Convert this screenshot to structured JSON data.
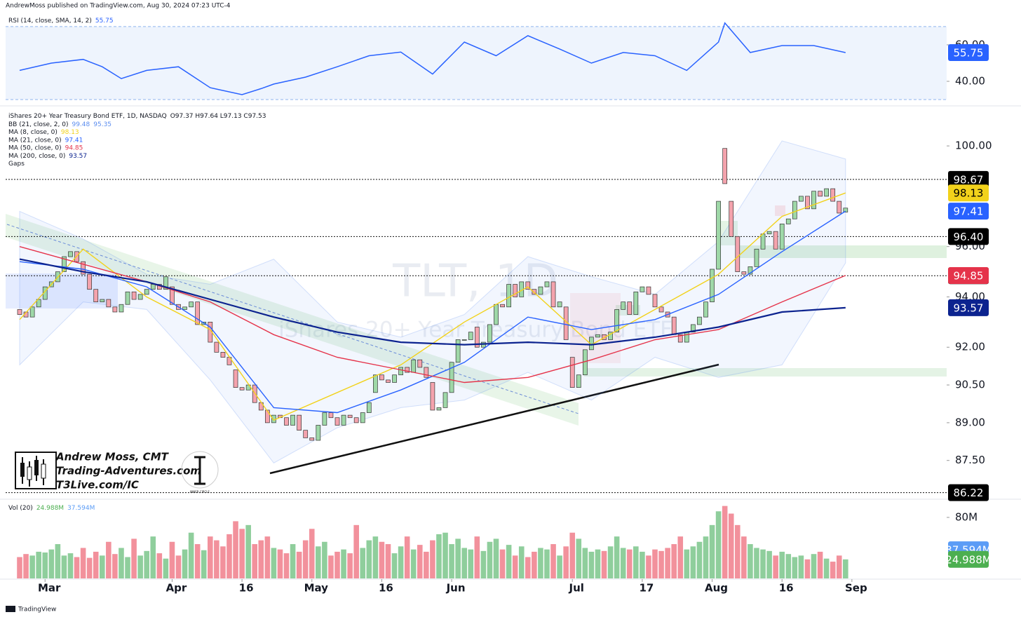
{
  "header": "AndrewMoss published on TradingView.com, Aug 30, 2024 07:23 UTC-4",
  "branding": {
    "name": "Andrew Moss, CMT",
    "site": "Trading-Adventures.com",
    "link": "T3Live.com/IC",
    "badge": "INNER CIRCLE"
  },
  "footer": "TradingView",
  "chart_data": [
    {
      "type": "line",
      "legend": "RSI (14, close, SMA, 14, 2)",
      "color": "#2962ff",
      "x": [
        0,
        5,
        10,
        13,
        16,
        20,
        25,
        30,
        35,
        38,
        40,
        45,
        50,
        55,
        60,
        65,
        70,
        75,
        80,
        85,
        90,
        95,
        100,
        105,
        110,
        111,
        115,
        120,
        125,
        130
      ],
      "values": [
        46,
        50,
        52,
        48,
        41.5,
        46,
        48,
        36.5,
        32.7,
        36,
        38.5,
        42.3,
        48,
        54,
        56,
        44,
        61.5,
        54,
        65,
        57.7,
        50,
        55.8,
        54,
        46,
        61.5,
        72,
        55.8,
        59.6,
        59.6,
        55.75
      ],
      "ylim": [
        27.7,
        73.8
      ],
      "yticks": [
        {
          "value": 60,
          "label": "60.00"
        },
        {
          "value": 40,
          "label": "40.00"
        }
      ],
      "bands": [
        30,
        70
      ]
    },
    {
      "type": "candlestick",
      "title": "TLT, 1D",
      "subtitle": "iShares 20+ Year Treasury Bond ETF",
      "legend": "iShares 20+ Year Treasury Bond ETF, 1D, NASDAQ",
      "ohlc_text": "O97.37 H97.64 L97.13 C97.53",
      "gaps_legend": "Gaps",
      "open": [
        93.5,
        93.4,
        93.2,
        93.6,
        93.9,
        94.4,
        94.6,
        95.0,
        95.6,
        95.8,
        95.4,
        94.9,
        94.3,
        93.8,
        93.9,
        93.6,
        93.4,
        93.7,
        94.2,
        93.9,
        94.1,
        94.3,
        94.5,
        94.3,
        94.4,
        93.7,
        93.5,
        93.6,
        93.8,
        92.9,
        93.0,
        92.2,
        91.8,
        91.6,
        91.1,
        90.4,
        90.3,
        90.5,
        89.8,
        89.5,
        89.0,
        89.3,
        89.2,
        88.9,
        89.3,
        88.7,
        88.4,
        88.3,
        88.9,
        89.4,
        89.2,
        88.9,
        89.3,
        89.2,
        89.0,
        89.4,
        90.2,
        90.9,
        90.7,
        90.6,
        90.9,
        91.2,
        91.0,
        91.5,
        91.2,
        90.6,
        89.5,
        89.6,
        90.2,
        91.4,
        92.3,
        92.3,
        92.8,
        92.0,
        92.2,
        92.9,
        93.7,
        93.6,
        94.5,
        94.0,
        94.6,
        94.3,
        94.1,
        94.4,
        94.6,
        93.6,
        93.6,
        91.6,
        90.4,
        90.9,
        91.9,
        92.4,
        92.5,
        92.3,
        92.6,
        93.5,
        93.8,
        93.3,
        94.2,
        94.4,
        94.1,
        93.6,
        93.4,
        93.2,
        92.5,
        92.2,
        92.6,
        92.9,
        93.2,
        93.8,
        95.1,
        99.9,
        97.8,
        96.4,
        95.0,
        94.9,
        95.2,
        95.9,
        96.5,
        96.6,
        95.9,
        96.9,
        97.1,
        97.8,
        98.0,
        97.5,
        98.2,
        98.0,
        98.3,
        97.8,
        97.37
      ],
      "close": [
        93.3,
        93.2,
        93.6,
        93.9,
        94.4,
        94.6,
        95.0,
        95.6,
        95.8,
        95.4,
        94.9,
        94.3,
        93.8,
        93.9,
        93.6,
        93.4,
        93.7,
        94.2,
        93.9,
        94.1,
        94.3,
        94.5,
        94.3,
        94.8,
        93.7,
        93.5,
        93.6,
        93.8,
        92.9,
        93.0,
        92.2,
        91.8,
        91.6,
        91.3,
        90.4,
        90.3,
        90.5,
        89.8,
        89.5,
        89.0,
        89.3,
        89.2,
        88.9,
        89.3,
        88.7,
        88.4,
        88.3,
        88.9,
        89.4,
        89.2,
        88.9,
        89.3,
        89.2,
        89.0,
        89.4,
        89.8,
        90.9,
        90.7,
        90.6,
        90.9,
        91.2,
        91.0,
        91.5,
        91.2,
        90.8,
        89.5,
        89.6,
        90.2,
        91.4,
        92.3,
        92.3,
        92.6,
        92.0,
        92.2,
        92.9,
        93.7,
        93.6,
        94.5,
        94.0,
        94.6,
        94.3,
        94.1,
        94.4,
        94.6,
        93.6,
        93.8,
        92.3,
        90.4,
        90.9,
        91.9,
        92.4,
        92.5,
        92.3,
        92.6,
        93.5,
        93.8,
        93.3,
        94.2,
        94.4,
        94.1,
        93.6,
        93.4,
        93.2,
        92.5,
        92.2,
        92.6,
        92.9,
        93.2,
        93.8,
        95.1,
        97.8,
        98.5,
        96.4,
        95.0,
        94.9,
        95.2,
        95.9,
        96.5,
        96.6,
        95.9,
        96.9,
        97.1,
        97.8,
        98.0,
        97.5,
        98.2,
        98.0,
        98.3,
        97.8,
        97.33,
        97.53
      ],
      "ylim": [
        85.96,
        101.48
      ],
      "yticks": [
        {
          "value": 87.5,
          "label": "87.50"
        },
        {
          "value": 89,
          "label": "89.00"
        },
        {
          "value": 90.5,
          "label": "90.50"
        },
        {
          "value": 92,
          "label": "92.00"
        },
        {
          "value": 94,
          "label": "94.00"
        },
        {
          "value": 96,
          "label": "96.00"
        },
        {
          "value": 100,
          "label": "100.00"
        }
      ],
      "xticks": [
        {
          "value": 4,
          "label": "Mar"
        },
        {
          "value": 24,
          "label": "Apr"
        },
        {
          "value": 35,
          "label": "16"
        },
        {
          "value": 46,
          "label": "May"
        },
        {
          "value": 57,
          "label": "16"
        },
        {
          "value": 68,
          "label": "Jun"
        },
        {
          "value": 87,
          "label": "Jul"
        },
        {
          "value": 98,
          "label": "17"
        },
        {
          "value": 109,
          "label": "Aug"
        },
        {
          "value": 120,
          "label": "16"
        },
        {
          "value": 131,
          "label": "Sep"
        }
      ],
      "line_x": [
        0,
        10,
        20,
        30,
        40,
        50,
        60,
        70,
        80,
        90,
        100,
        110,
        120,
        130
      ],
      "bb": {
        "name": "BB (21, close, 2, 0)",
        "color": "#5b8def",
        "upper": [
          97.4,
          96.3,
          94.9,
          94.5,
          95.5,
          93.0,
          92.4,
          93.3,
          95.6,
          94.8,
          94.1,
          96.2,
          100.2,
          99.48
        ],
        "lower": [
          91.3,
          93.8,
          93.5,
          90.7,
          87.4,
          88.8,
          89.6,
          89.9,
          91.0,
          89.9,
          91.6,
          90.8,
          91.3,
          95.35
        ]
      },
      "series": [
        {
          "name": "MA (8, close, 0)",
          "color": "#f2d21b",
          "text_color": "#000000",
          "values": [
            93.1,
            95.9,
            94.0,
            92.7,
            89.1,
            90.2,
            91.3,
            93.0,
            94.4,
            92.1,
            93.5,
            94.9,
            97.2,
            98.13
          ]
        },
        {
          "name": "MA (21, close, 0)",
          "color": "#2962ff",
          "text_color": "#ffffff",
          "values": [
            95.4,
            95.1,
            94.4,
            92.8,
            89.6,
            89.4,
            90.3,
            91.4,
            93.2,
            92.7,
            93.1,
            94.1,
            95.8,
            97.41
          ]
        },
        {
          "name": "MA (50, close, 0)",
          "color": "#e5334a",
          "text_color": "#ffffff",
          "values": [
            96.0,
            95.3,
            94.6,
            93.8,
            92.5,
            91.6,
            91.1,
            90.6,
            90.8,
            91.5,
            92.3,
            92.7,
            93.8,
            94.85
          ]
        },
        {
          "name": "MA (200, close, 0)",
          "color": "#0c238f",
          "text_color": "#ffffff",
          "values": [
            95.5,
            95.0,
            94.6,
            93.9,
            93.2,
            92.6,
            92.2,
            92.1,
            92.2,
            92.1,
            92.4,
            92.8,
            93.4,
            93.57
          ]
        }
      ],
      "levels": [
        98.67,
        {
          "value": 96.4,
          "label": "96.40"
        },
        94.84,
        86.22
      ]
    },
    {
      "type": "bar",
      "legend": "Vol (20)",
      "values": [
        28,
        32,
        30,
        35,
        34,
        38,
        45,
        30,
        33,
        28,
        40,
        27,
        35,
        30,
        48,
        32,
        40,
        28,
        52,
        30,
        36,
        55,
        33,
        26,
        48,
        30,
        38,
        60,
        45,
        37,
        55,
        50,
        42,
        58,
        75,
        65,
        70,
        45,
        50,
        55,
        40,
        38,
        33,
        45,
        35,
        50,
        65,
        42,
        48,
        30,
        35,
        38,
        33,
        70,
        40,
        50,
        55,
        48,
        45,
        33,
        42,
        55,
        38,
        44,
        35,
        50,
        58,
        60,
        45,
        52,
        40,
        38,
        55,
        36,
        48,
        52,
        38,
        44,
        30,
        42,
        28,
        35,
        40,
        38,
        45,
        30,
        42,
        60,
        52,
        40,
        35,
        38,
        36,
        42,
        55,
        40,
        38,
        42,
        35,
        30,
        38,
        36,
        40,
        45,
        55,
        38,
        42,
        48,
        55,
        70,
        88,
        95,
        85,
        70,
        55,
        45,
        40,
        38,
        36,
        30,
        35,
        32,
        28,
        30,
        25,
        32,
        35,
        26,
        22,
        30,
        24.988
      ],
      "ylim": [
        0,
        101.1
      ],
      "yticks": [
        {
          "value": 80,
          "label": "80M"
        }
      ],
      "markers": [
        {
          "value": 37.594,
          "label": "37.594M",
          "color": "#5b9cf6"
        },
        {
          "value": 24.988,
          "label": "24.988M",
          "color": "#4caf50"
        }
      ]
    }
  ]
}
